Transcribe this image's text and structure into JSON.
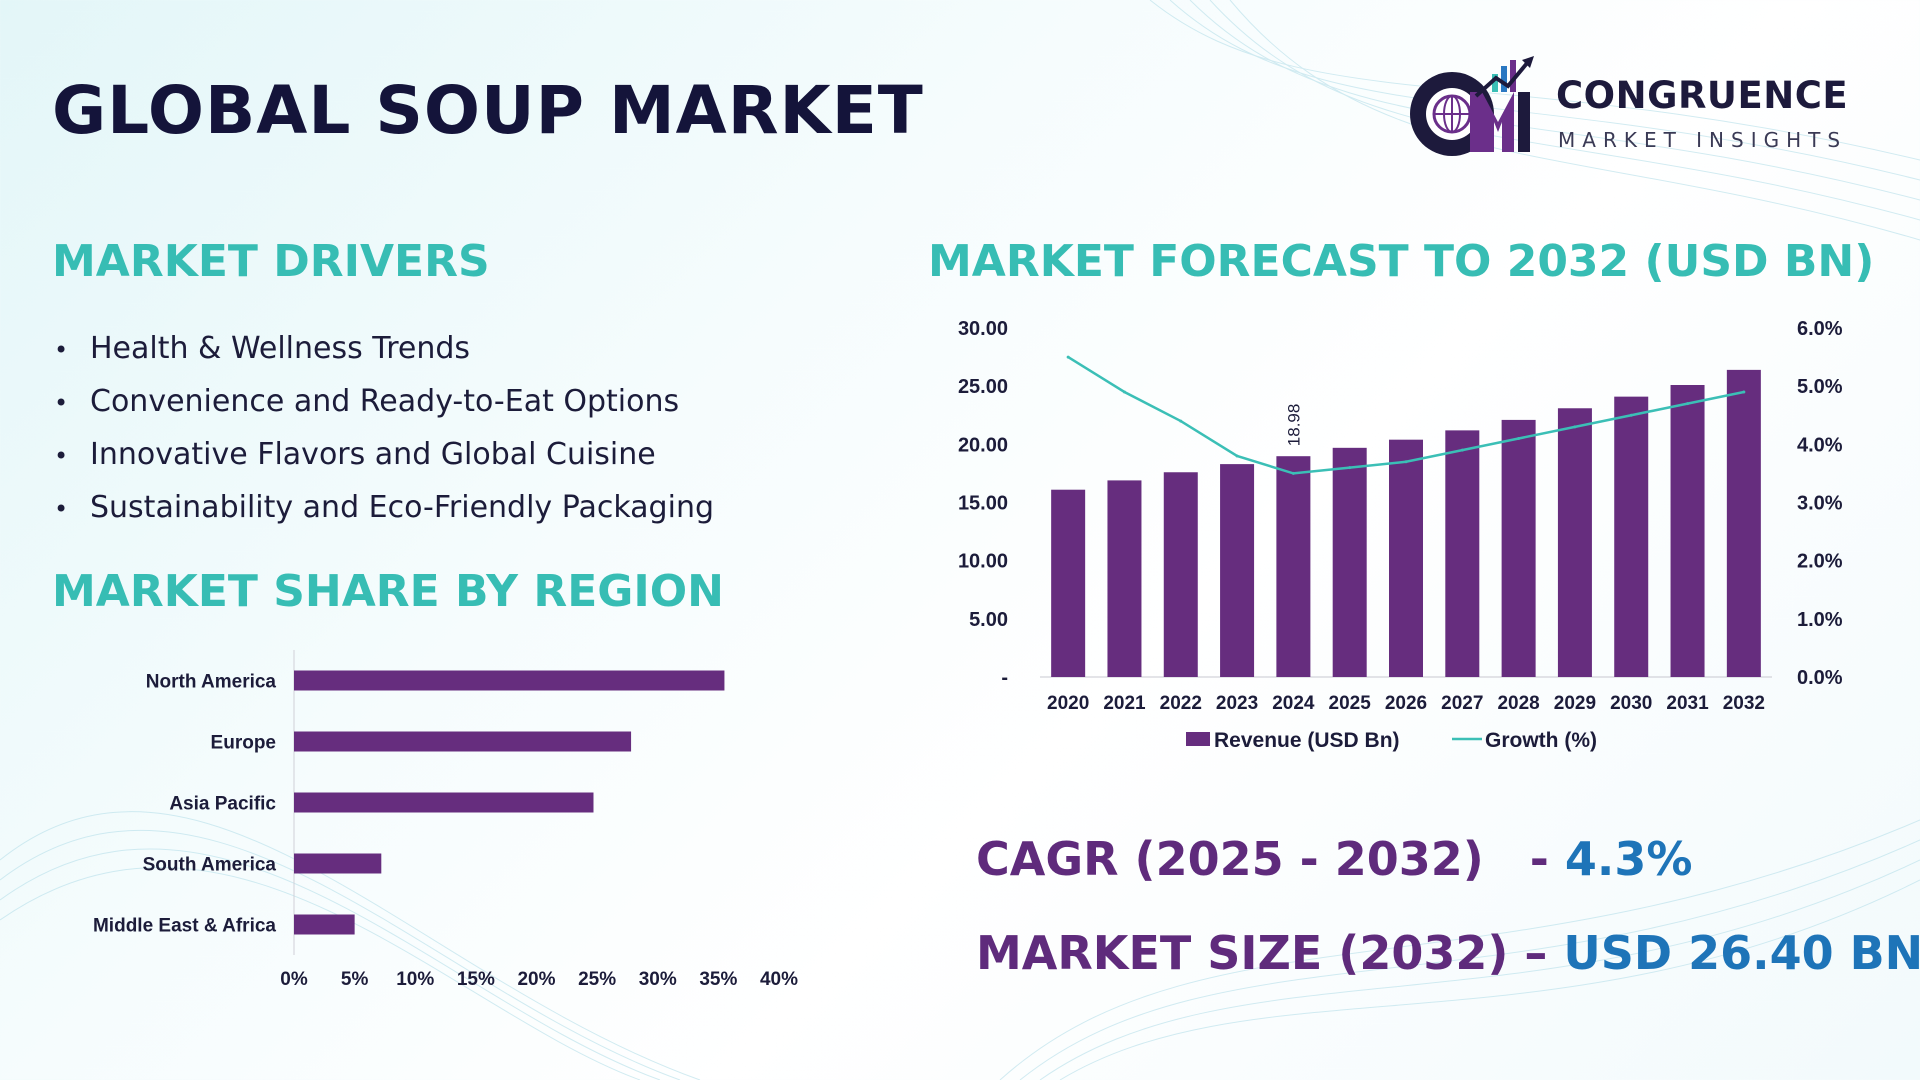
{
  "header": {
    "title": "GLOBAL SOUP MARKET",
    "brand_name": "CONGRUENCE",
    "brand_tagline": "MARKET INSIGHTS",
    "brand_monogram_icon": "cm-monogram-icon"
  },
  "drivers": {
    "heading": "MARKET DRIVERS",
    "bullet": "•",
    "items": [
      "Health & Wellness Trends",
      "Convenience and Ready-to-Eat Options",
      "Innovative Flavors and Global Cuisine",
      "Sustainability and Eco-Friendly Packaging"
    ]
  },
  "region": {
    "heading": "MARKET SHARE BY REGION"
  },
  "forecast": {
    "heading": "MARKET FORECAST TO 2032 (USD BN)"
  },
  "kpis": {
    "cagr_label": "CAGR (2025 - 2032)",
    "cagr_sep": "- ",
    "cagr_value": "4.3%",
    "size_label": "MARKET SIZE (2032)",
    "size_sep": " – ",
    "size_value": "USD 26.40 BN"
  },
  "colors": {
    "bar": "#662d7e",
    "line": "#3bbfb6",
    "heading_teal": "#37bdb4",
    "kpi_purple": "#5f2b7c",
    "kpi_blue": "#1e74b8",
    "dark_text": "#14143a"
  },
  "chart_data": [
    {
      "type": "bar",
      "orientation": "horizontal",
      "categories": [
        "North America",
        "Europe",
        "Asia Pacific",
        "South America",
        "Middle East & Africa"
      ],
      "values": [
        35.5,
        27.8,
        24.7,
        7.2,
        5.0
      ],
      "xlim": [
        0,
        40
      ],
      "x_ticks": [
        "0%",
        "5%",
        "10%",
        "15%",
        "20%",
        "25%",
        "30%",
        "35%",
        "40%"
      ],
      "x_tick_values": [
        0,
        5,
        10,
        15,
        20,
        25,
        30,
        35,
        40
      ],
      "grid": false,
      "legend": "none"
    },
    {
      "type": "bar",
      "categories": [
        "2020",
        "2021",
        "2022",
        "2023",
        "2024",
        "2025",
        "2026",
        "2027",
        "2028",
        "2029",
        "2030",
        "2031",
        "2032"
      ],
      "series": [
        {
          "name": "Revenue (USD Bn)",
          "type": "bar",
          "axis": "left",
          "values": [
            16.1,
            16.9,
            17.6,
            18.3,
            18.98,
            19.7,
            20.4,
            21.2,
            22.1,
            23.1,
            24.1,
            25.1,
            26.4
          ]
        },
        {
          "name": "Growth (%)",
          "type": "line",
          "axis": "right",
          "values": [
            5.5,
            4.9,
            4.4,
            3.8,
            3.5,
            3.6,
            3.7,
            3.9,
            4.1,
            4.3,
            4.5,
            4.7,
            4.9
          ]
        }
      ],
      "data_labels": [
        {
          "category": "2024",
          "text": "18.98"
        }
      ],
      "y_left": {
        "lim": [
          0,
          30
        ],
        "ticks": [
          "-",
          "5.00",
          "10.00",
          "15.00",
          "20.00",
          "25.00",
          "30.00"
        ],
        "tick_values": [
          0,
          5,
          10,
          15,
          20,
          25,
          30
        ]
      },
      "y_right": {
        "lim": [
          0,
          6
        ],
        "ticks": [
          "0.0%",
          "1.0%",
          "2.0%",
          "3.0%",
          "4.0%",
          "5.0%",
          "6.0%"
        ],
        "tick_values": [
          0,
          1,
          2,
          3,
          4,
          5,
          6
        ]
      },
      "grid": false,
      "legend": "bottom"
    }
  ]
}
